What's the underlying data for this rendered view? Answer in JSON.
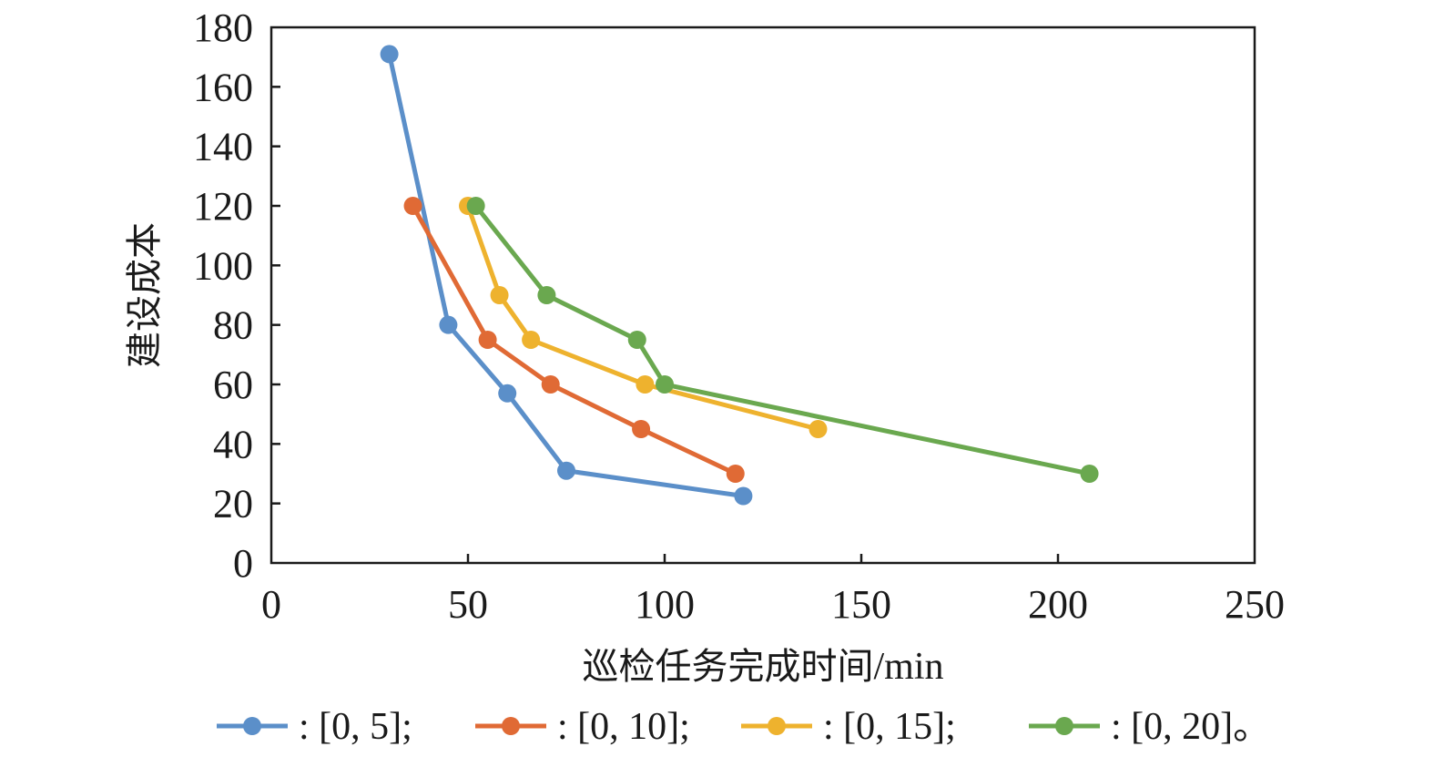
{
  "chart_data": {
    "type": "line",
    "title": "",
    "xlabel": "巡检任务完成时间",
    "xlabel_unit": "/min",
    "ylabel": "建设成本",
    "xlim": [
      0,
      250
    ],
    "ylim": [
      0,
      180
    ],
    "xticks": [
      "0",
      "50",
      "100",
      "150",
      "200",
      "250"
    ],
    "yticks": [
      "0",
      "20",
      "40",
      "60",
      "80",
      "100",
      "120",
      "140",
      "160",
      "180"
    ],
    "grid": false,
    "legend_position": "bottom",
    "series": [
      {
        "name": ": [0, 5];",
        "color": "#5b8fc9",
        "points": [
          [
            30,
            171
          ],
          [
            45,
            80
          ],
          [
            60,
            57
          ],
          [
            75,
            31
          ],
          [
            120,
            22.5
          ]
        ]
      },
      {
        "name": ": [0, 10];",
        "color": "#e06a35",
        "points": [
          [
            36,
            120
          ],
          [
            55,
            75
          ],
          [
            71,
            60
          ],
          [
            94,
            45
          ],
          [
            118,
            30
          ]
        ]
      },
      {
        "name": ": [0, 15];",
        "color": "#eeb22e",
        "points": [
          [
            50,
            120
          ],
          [
            58,
            90
          ],
          [
            66,
            75
          ],
          [
            95,
            60
          ],
          [
            139,
            45
          ]
        ]
      },
      {
        "name": ": [0, 20]。",
        "color": "#6aa84f",
        "points": [
          [
            52,
            120
          ],
          [
            70,
            90
          ],
          [
            93,
            75
          ],
          [
            100,
            60
          ],
          [
            208,
            30
          ]
        ]
      }
    ]
  }
}
